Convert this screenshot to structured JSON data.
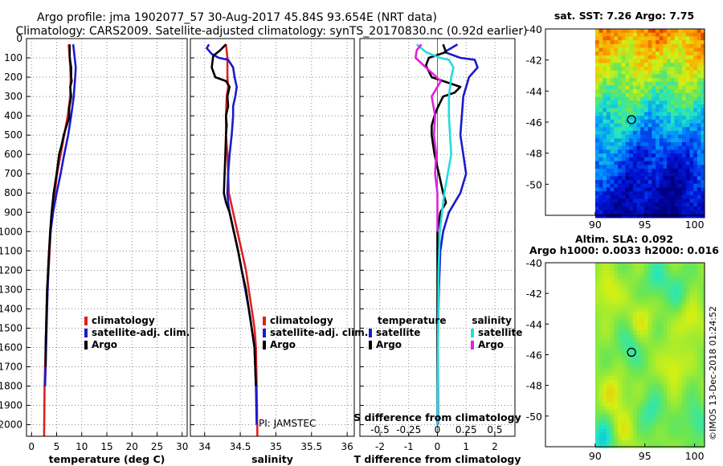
{
  "figure": {
    "title_line1": "Argo profile: jma 1902077_57 30-Aug-2017 45.84S 93.654E (NRT data)",
    "title_line2": "Climatology: CARS2009. Satellite-adjusted climatology: synTS_20170830.nc (0.92d earlier)",
    "timestamp": "©IMOS 13-Dec-2018 01:24:52",
    "pi_label": "PI: JAMSTEC"
  },
  "colors": {
    "climatology": "#dd2222",
    "satellite": "#1a1acc",
    "argo": "#000000",
    "sat_salinity": "#22dddd",
    "argo_salinity": "#dd22dd",
    "marker": "#000000"
  },
  "depth_ticks": [
    0,
    100,
    200,
    300,
    400,
    500,
    600,
    700,
    800,
    900,
    1000,
    1100,
    1200,
    1300,
    1400,
    1500,
    1600,
    1700,
    1800,
    1900,
    2000
  ],
  "chart_data": [
    {
      "id": "temperature",
      "type": "line",
      "xlabel": "temperature (deg C)",
      "ylabel": "",
      "xlim": [
        -1,
        31
      ],
      "ylim": [
        2060,
        0
      ],
      "xticks": [
        0,
        5,
        10,
        15,
        20,
        25,
        30
      ],
      "xtick_labels": [
        "0",
        "5",
        "10",
        "15",
        "20",
        "25",
        "30"
      ],
      "grid": true,
      "legend": {
        "position": "center-right",
        "entries": [
          "climatology",
          "satellite-adj. clim.",
          "Argo"
        ]
      },
      "series": [
        {
          "name": "climatology",
          "color_key": "climatology",
          "x": [
            7.4,
            7.6,
            7.7,
            7.8,
            7.7,
            7.2,
            6.5,
            5.8,
            5.1,
            4.6,
            4.0,
            3.8,
            3.6,
            3.4,
            3.2,
            3.0,
            2.9,
            2.8,
            2.7,
            2.6,
            2.5
          ],
          "y": [
            30,
            100,
            150,
            200,
            300,
            400,
            500,
            600,
            700,
            800,
            900,
            1000,
            1100,
            1200,
            1300,
            1400,
            1500,
            1600,
            1700,
            1800,
            2060
          ]
        },
        {
          "name": "satellite-adj. clim.",
          "color_key": "satellite",
          "x": [
            8.3,
            8.6,
            8.8,
            8.7,
            8.4,
            7.9,
            7.3,
            6.5,
            5.8,
            5.0,
            4.3,
            3.8,
            3.5,
            3.3,
            3.2,
            3.1,
            3.0,
            2.9,
            2.8,
            2.7
          ],
          "y": [
            30,
            100,
            150,
            200,
            300,
            400,
            500,
            600,
            700,
            800,
            900,
            1000,
            1100,
            1200,
            1300,
            1400,
            1500,
            1600,
            1700,
            1800
          ]
        },
        {
          "name": "Argo",
          "color_key": "argo",
          "x": [
            7.6,
            7.6,
            7.9,
            7.9,
            8.0,
            7.7,
            7.9,
            7.5,
            7.5,
            7.0,
            6.4,
            6.0,
            5.5,
            5.0,
            4.4,
            4.0,
            3.7,
            3.5,
            3.3,
            3.1,
            3.0,
            2.9,
            2.8,
            2.8
          ],
          "y": [
            30,
            100,
            150,
            200,
            220,
            250,
            300,
            360,
            410,
            450,
            500,
            550,
            600,
            700,
            800,
            900,
            1000,
            1100,
            1200,
            1300,
            1400,
            1500,
            1600,
            1700
          ]
        }
      ]
    },
    {
      "id": "salinity",
      "type": "line",
      "xlabel": "salinity",
      "ylabel": "",
      "xlim": [
        33.8,
        36.1
      ],
      "ylim": [
        2060,
        0
      ],
      "xticks": [
        34,
        34.5,
        35,
        35.5,
        36
      ],
      "xtick_labels": [
        "34",
        "34.5",
        "35",
        "35.5",
        "36"
      ],
      "grid": true,
      "legend": {
        "position": "center-right",
        "entries": [
          "climatology",
          "satellite-adj. clim.",
          "Argo"
        ]
      },
      "series": [
        {
          "name": "climatology",
          "color_key": "climatology",
          "x": [
            34.3,
            34.32,
            34.32,
            34.33,
            34.31,
            34.3,
            34.3,
            34.32,
            34.33,
            34.34,
            34.4,
            34.46,
            34.52,
            34.58,
            34.62,
            34.66,
            34.7,
            34.72,
            34.73,
            34.74
          ],
          "y": [
            30,
            100,
            200,
            250,
            300,
            400,
            500,
            600,
            700,
            800,
            900,
            1000,
            1100,
            1200,
            1300,
            1400,
            1500,
            1600,
            1800,
            2060
          ]
        },
        {
          "name": "satellite-adj. clim.",
          "color_key": "satellite",
          "x": [
            34.06,
            34.03,
            34.1,
            34.2,
            34.33,
            34.4,
            34.42,
            34.45,
            34.43,
            34.4,
            34.4,
            34.38,
            34.35,
            34.33,
            34.32,
            34.33,
            34.35,
            34.41,
            34.47,
            34.52,
            34.57,
            34.62,
            34.66,
            34.7,
            34.72,
            34.73
          ],
          "y": [
            30,
            50,
            80,
            100,
            110,
            150,
            200,
            250,
            300,
            350,
            400,
            500,
            600,
            700,
            800,
            850,
            900,
            1000,
            1100,
            1200,
            1300,
            1400,
            1500,
            1600,
            1800,
            2000
          ]
        },
        {
          "name": "Argo",
          "color_key": "argo",
          "x": [
            34.3,
            34.22,
            34.12,
            34.1,
            34.15,
            34.3,
            34.35,
            34.32,
            34.33,
            34.3,
            34.31,
            34.3,
            34.29,
            34.28,
            34.27,
            34.3,
            34.35,
            34.41,
            34.47,
            34.52,
            34.58,
            34.62,
            34.66,
            34.7,
            34.72
          ],
          "y": [
            30,
            60,
            90,
            150,
            200,
            220,
            250,
            300,
            350,
            400,
            450,
            500,
            600,
            700,
            800,
            850,
            900,
            1000,
            1100,
            1200,
            1300,
            1400,
            1500,
            1600,
            1800
          ]
        }
      ]
    },
    {
      "id": "difference",
      "type": "line",
      "xlabel": "T difference from climatology",
      "xlabel_top": "S difference from climatology",
      "xlim": [
        -2.7,
        2.7
      ],
      "ylim": [
        2060,
        0
      ],
      "xticks": [
        -2,
        -1,
        0,
        1,
        2
      ],
      "xtick_labels": [
        "-2",
        "-1",
        "0",
        "1",
        "2"
      ],
      "sticks": [
        -0.5,
        -0.25,
        0,
        0.25,
        0.5
      ],
      "stick_labels": [
        "-0.5",
        "-0.25",
        "0",
        "0.25",
        "0.5"
      ],
      "s_scale": 4,
      "grid": true,
      "legend_temperature": {
        "title": "temperature",
        "entries": [
          "satellite",
          "Argo"
        ]
      },
      "legend_salinity": {
        "title": "salinity",
        "entries": [
          "satellite",
          "Argo"
        ]
      },
      "series": [
        {
          "name": "T satellite",
          "color_key": "satellite",
          "x": [
            0.7,
            0.25,
            0.8,
            1.3,
            1.4,
            1.1,
            0.9,
            0.85,
            0.8,
            0.9,
            1.0,
            0.8,
            0.4,
            0.2,
            0.1,
            0.05,
            0.02,
            0.02,
            0.02
          ],
          "y": [
            30,
            70,
            100,
            110,
            150,
            200,
            300,
            400,
            500,
            600,
            700,
            800,
            900,
            1000,
            1100,
            1300,
            1500,
            1700,
            2000
          ]
        },
        {
          "name": "T Argo",
          "color_key": "argo",
          "x": [
            0.2,
            0.3,
            0.1,
            -0.3,
            -0.4,
            -0.2,
            0.2,
            0.8,
            0.6,
            0.2,
            0.0,
            -0.1,
            -0.2,
            -0.2,
            -0.15,
            -0.1,
            0.05,
            0.2,
            0.3,
            0.1,
            0.0,
            0.0,
            0.0,
            0.0
          ],
          "y": [
            30,
            70,
            80,
            100,
            140,
            200,
            220,
            250,
            280,
            300,
            360,
            400,
            450,
            500,
            550,
            600,
            700,
            800,
            850,
            900,
            1000,
            1200,
            1500,
            2000
          ]
        },
        {
          "name": "S satellite",
          "color_key": "sat_salinity",
          "x": [
            -0.18,
            -0.1,
            0.02,
            0.1,
            0.14,
            0.12,
            0.1,
            0.1,
            0.11,
            0.12,
            0.09,
            0.06,
            0.04,
            0.02,
            0.01,
            0.0
          ],
          "y": [
            30,
            70,
            100,
            110,
            150,
            200,
            300,
            400,
            500,
            600,
            700,
            800,
            900,
            1000,
            1200,
            2000
          ]
        },
        {
          "name": "S Argo",
          "color_key": "argo_salinity",
          "x": [
            -0.14,
            -0.18,
            -0.19,
            -0.1,
            0.03,
            -0.05,
            -0.02,
            -0.03,
            -0.01,
            -0.02,
            0.0,
            0.0,
            0.0
          ],
          "y": [
            30,
            60,
            100,
            150,
            220,
            300,
            400,
            500,
            600,
            700,
            800,
            900,
            1000
          ]
        }
      ]
    },
    {
      "id": "sst_map",
      "type": "heatmap",
      "title": "sat. SST: 7.26 Argo: 7.75",
      "xlim": [
        85,
        101
      ],
      "ylim": [
        -52,
        -40
      ],
      "xticks": [
        90,
        95,
        100
      ],
      "xtick_labels": [
        "90",
        "95",
        "100"
      ],
      "yticks": [
        -40,
        -42,
        -44,
        -46,
        -48,
        -50
      ],
      "ytick_labels": [
        "-40",
        "-42",
        "-44",
        "-46",
        "-48",
        "-50"
      ],
      "data_xlim": [
        90,
        101
      ],
      "marker": {
        "lon": 93.654,
        "lat": -45.84
      }
    },
    {
      "id": "sla_map",
      "type": "heatmap",
      "title": "Altim. SLA: 0.092",
      "subtitle": "Argo h1000: 0.0033 h2000: 0.016",
      "xlim": [
        85,
        101
      ],
      "ylim": [
        -52,
        -40
      ],
      "xticks": [
        90,
        95,
        100
      ],
      "xtick_labels": [
        "90",
        "95",
        "100"
      ],
      "yticks": [
        -40,
        -42,
        -44,
        -46,
        -48,
        -50
      ],
      "ytick_labels": [
        "-40",
        "-42",
        "-44",
        "-46",
        "-48",
        "-50"
      ],
      "data_xlim": [
        90,
        101
      ],
      "marker": {
        "lon": 93.654,
        "lat": -45.84
      }
    }
  ]
}
